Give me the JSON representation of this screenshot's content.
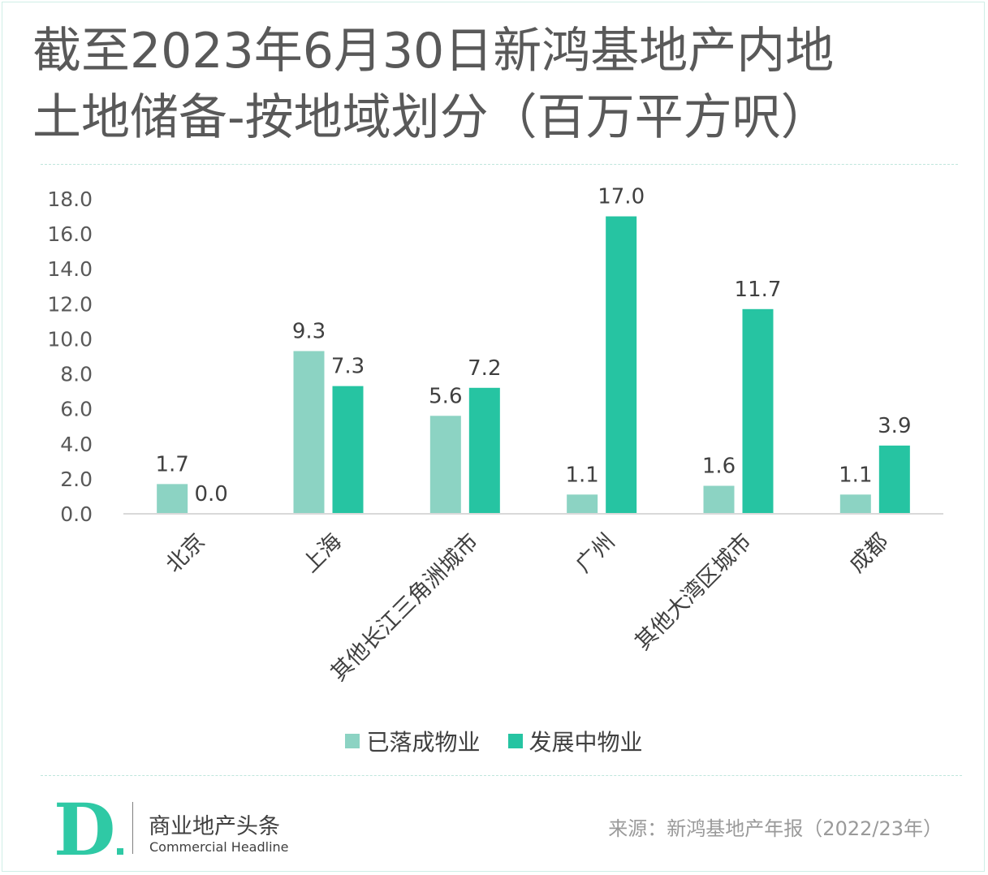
{
  "header": {
    "title_line1": "截至2023年6月30日新鸿基地产内地",
    "title_line2": "土地储备-按地域划分（百万平方呎）"
  },
  "chart_data": {
    "type": "bar",
    "title": "截至2023年6月30日新鸿基地产内地土地储备-按地域划分（百万平方呎）",
    "categories": [
      "北京",
      "上海",
      "其他长江三角洲城市",
      "广州",
      "其他大湾区城市",
      "成都"
    ],
    "series": [
      {
        "name": "已落成物业",
        "values": [
          1.7,
          9.3,
          5.6,
          1.1,
          1.6,
          1.1
        ],
        "labels": [
          "1.7",
          "9.3",
          "5.6",
          "1.1",
          "1.6",
          "1.1"
        ],
        "color": "#8cd3c3"
      },
      {
        "name": "发展中物业",
        "values": [
          0.0,
          7.3,
          7.2,
          17.0,
          11.7,
          3.9
        ],
        "labels": [
          "0.0",
          "7.3",
          "7.2",
          "17.0",
          "11.7",
          "3.9"
        ],
        "color": "#26c4a2"
      }
    ],
    "ylim": [
      0,
      18
    ],
    "yticks": [
      "0.0",
      "2.0",
      "4.0",
      "6.0",
      "8.0",
      "10.0",
      "12.0",
      "14.0",
      "16.0",
      "18.0"
    ],
    "xlabel": "",
    "ylabel": "",
    "grid": false,
    "legend_position": "bottom"
  },
  "branding": {
    "logo_letter": "D",
    "name_cn": "商业地产头条",
    "name_en": "Commercial Headline",
    "logo_color": "#2fc9a5"
  },
  "footer": {
    "source": "来源：新鸿基地产年报（2022/23年）"
  }
}
